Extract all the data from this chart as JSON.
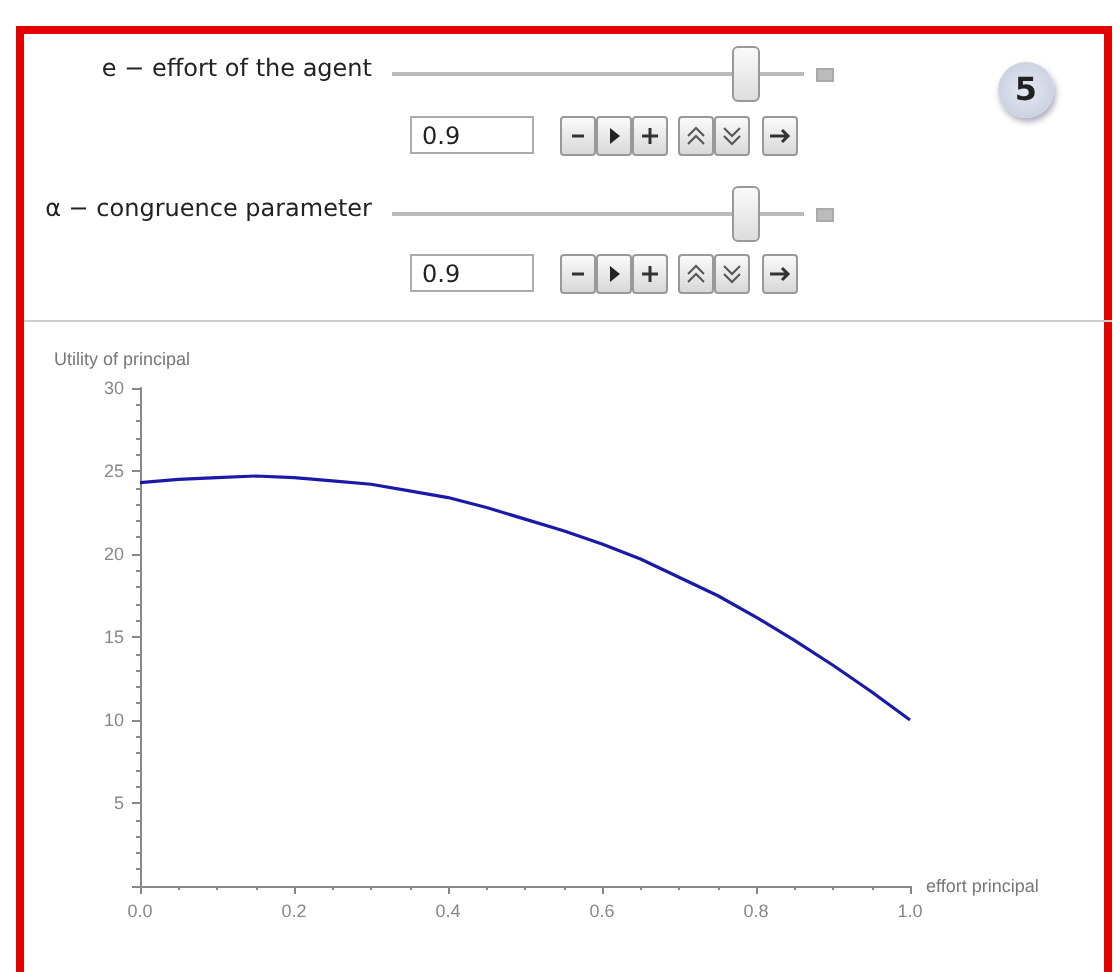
{
  "chart_data": {
    "type": "line",
    "xlabel": "effort principal",
    "ylabel": "Utility of principal",
    "annotations": [
      "e − effort of the  agent",
      "0.9",
      "α − congruence parameter",
      "0.9",
      "5"
    ],
    "x": [
      0,
      0.05,
      0.1,
      0.15,
      0.2,
      0.25,
      0.3,
      0.35,
      0.4,
      0.45,
      0.5,
      0.55,
      0.6,
      0.65,
      0.7,
      0.75,
      0.8,
      0.85,
      0.9,
      0.95,
      1.0
    ],
    "series": [
      {
        "color": "#1a1aa6",
        "values": [
          24.3,
          24.5,
          24.6,
          24.7,
          24.6,
          24.4,
          24.2,
          23.8,
          23.4,
          22.8,
          22.1,
          21.4,
          20.6,
          19.7,
          18.6,
          17.5,
          16.2,
          14.8,
          13.3,
          11.7,
          10.0
        ]
      }
    ],
    "xlim": [
      0,
      1
    ],
    "xticks": [
      {
        "value": 0,
        "label": "0.0"
      },
      0.2,
      0.4,
      0.6,
      0.8,
      {
        "value": 1,
        "label": "1.0"
      }
    ],
    "ylim": [
      0,
      30
    ],
    "yticks": [
      {
        "value": 0,
        "label": null
      },
      5,
      10,
      15,
      20,
      25,
      30
    ],
    "grid": false,
    "marker": "none",
    "line_style": "solid"
  }
}
